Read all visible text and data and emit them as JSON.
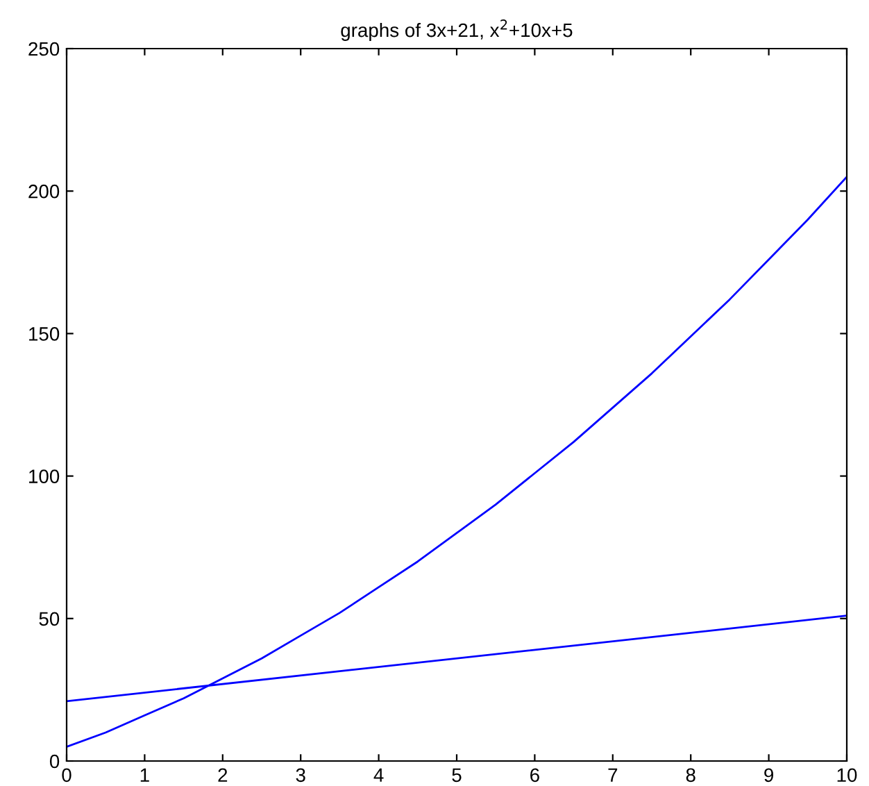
{
  "chart_data": {
    "type": "line",
    "title": "graphs of 3x+21, x$^{2}$+10x+5",
    "series": [
      {
        "color": "#0000ff",
        "x": [
          0,
          10
        ],
        "values": [
          21,
          51
        ]
      },
      {
        "color": "#0000ff",
        "x": [
          0,
          0.5,
          1,
          1.5,
          2,
          2.5,
          3,
          3.5,
          4,
          4.5,
          5,
          5.5,
          6,
          6.5,
          7,
          7.5,
          8,
          8.5,
          9,
          9.5,
          10
        ],
        "values": [
          5,
          10,
          16,
          22,
          29,
          36,
          44,
          52,
          61,
          70,
          80,
          90,
          101,
          112,
          124,
          136,
          149,
          162,
          176,
          190,
          205
        ]
      }
    ],
    "xlim": [
      0,
      10
    ],
    "xticks": [
      0,
      1,
      2,
      3,
      4,
      5,
      6,
      7,
      8,
      9,
      10
    ],
    "ylim": [
      0,
      250
    ],
    "yticks": [
      0,
      50,
      100,
      150,
      200,
      250
    ],
    "grid": false,
    "line_style": "solid",
    "marker": "none"
  }
}
